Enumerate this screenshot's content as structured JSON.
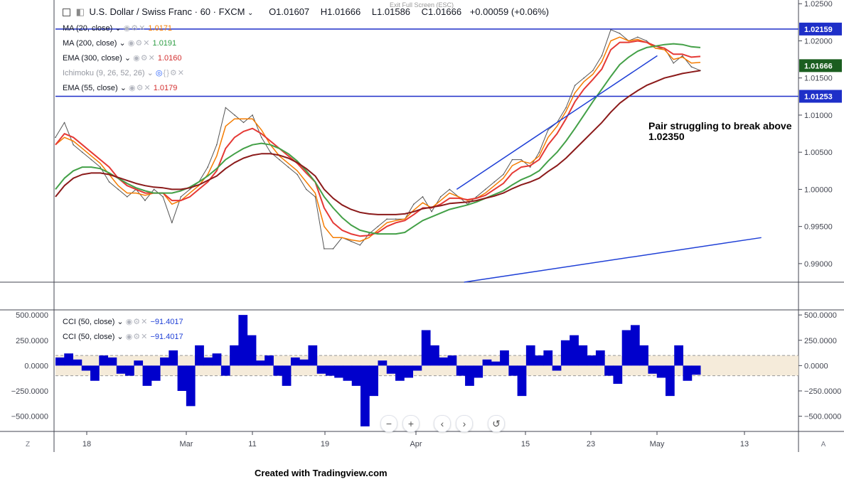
{
  "header": {
    "symbol": "U.S. Dollar / Swiss Franc · 60 · FXCM",
    "open": "O1.01607",
    "high": "H1.01666",
    "low": "L1.01586",
    "close": "C1.01666",
    "change": "+0.00059 (+0.06%)",
    "exit_fullscreen": "Exit Full Screen (ESC)"
  },
  "indicators": [
    {
      "label": "MA (20, close)",
      "value": "1.0171",
      "color": "#f57c00"
    },
    {
      "label": "MA (200, close)",
      "value": "1.0191",
      "color": "#2e9e44"
    },
    {
      "label": "EMA (300, close)",
      "value": "1.0160",
      "color": "#d32f2f"
    },
    {
      "label": "Ichimoku (9, 26, 52, 26)",
      "value": "",
      "color": "#b2b5be"
    },
    {
      "label": "EMA (55, close)",
      "value": "1.0179",
      "color": "#d32f2f"
    }
  ],
  "cci_legend": [
    {
      "label": "CCI (50, close)",
      "value": "−91.4017"
    },
    {
      "label": "CCI (50, close)",
      "value": "−91.4017"
    }
  ],
  "annotation": "Pair struggling to break above 1.02350",
  "footer": "Created with Tradingview.com",
  "corner_left": "Z",
  "corner_right": "A",
  "zoom_controls": [
    "−",
    "+",
    "‹",
    "›",
    "↺"
  ],
  "chart_data": [
    {
      "type": "line",
      "y_axis_ticks": [
        "1.02500",
        "1.02000",
        "1.01500",
        "1.01000",
        "1.00500",
        "1.00000",
        "0.99500",
        "0.99000"
      ],
      "ylim": [
        0.9875,
        1.0255
      ],
      "x_axis_ticks": [
        "18",
        "Mar",
        "11",
        "19",
        "Apr",
        "15",
        "23",
        "May",
        "13"
      ],
      "price_labels": [
        {
          "value": "1.02159",
          "y": 1.02159,
          "style": "blue-line"
        },
        {
          "value": "1.01666",
          "y": 1.01666,
          "style": "green-tag"
        },
        {
          "value": "1.01253",
          "y": 1.01253,
          "style": "blue-line"
        }
      ],
      "horizontal_lines": [
        1.02159,
        1.01253
      ],
      "series": [
        {
          "name": "Price",
          "color": "#555555",
          "values": [
            1.007,
            1.009,
            1.006,
            1.005,
            1.004,
            1.003,
            1.001,
            1.0,
            0.999,
            1.0,
            0.9985,
            1.0,
            0.999,
            0.9955,
            0.999,
            1.0,
            1.001,
            1.003,
            1.006,
            1.011,
            1.01,
            1.009,
            1.01,
            1.007,
            1.005,
            1.004,
            1.003,
            1.002,
            1.0,
            0.999,
            0.992,
            0.992,
            0.9935,
            0.993,
            0.9925,
            0.994,
            0.995,
            0.996,
            0.996,
            0.996,
            0.998,
            0.999,
            0.997,
            0.999,
            1.0,
            0.999,
            0.998,
            0.999,
            1.0,
            1.001,
            1.002,
            1.004,
            1.004,
            1.003,
            1.005,
            1.008,
            1.009,
            1.011,
            1.014,
            1.015,
            1.016,
            1.018,
            1.0215,
            1.021,
            1.02,
            1.0205,
            1.02,
            1.019,
            1.019,
            1.017,
            1.018,
            1.0165,
            1.016
          ]
        },
        {
          "name": "MA (20, close)",
          "color": "#f57c00",
          "values": [
            1.006,
            1.007,
            1.0065,
            1.0055,
            1.0045,
            1.0035,
            1.002,
            1.0005,
            0.9995,
            0.9995,
            0.9992,
            0.9995,
            0.9995,
            0.998,
            0.9985,
            0.9995,
            1.0005,
            1.002,
            1.0045,
            1.0085,
            1.0095,
            1.0095,
            1.0095,
            1.008,
            1.006,
            1.0045,
            1.0035,
            1.0025,
            1.001,
            0.9995,
            0.995,
            0.9935,
            0.9935,
            0.9932,
            0.993,
            0.9935,
            0.9945,
            0.9955,
            0.9958,
            0.996,
            0.9972,
            0.9982,
            0.9975,
            0.9985,
            0.9995,
            0.999,
            0.9985,
            0.9988,
            0.9995,
            1.0005,
            1.0015,
            1.0032,
            1.0038,
            1.0035,
            1.0045,
            1.007,
            1.0085,
            1.0105,
            1.013,
            1.0145,
            1.0155,
            1.0172,
            1.02,
            1.0205,
            1.02,
            1.0202,
            1.0198,
            1.019,
            1.0188,
            1.0175,
            1.0178,
            1.017,
            1.0171
          ]
        },
        {
          "name": "EMA (55, close)",
          "color": "#e53935",
          "values": [
            1.006,
            1.0075,
            1.007,
            1.006,
            1.005,
            1.004,
            1.003,
            1.0015,
            1.0005,
            1.0,
            0.9995,
            0.9995,
            0.9995,
            0.9985,
            0.9985,
            0.999,
            1.0,
            1.001,
            1.0025,
            1.0055,
            1.007,
            1.0078,
            1.0082,
            1.0075,
            1.0065,
            1.0055,
            1.0045,
            1.0035,
            1.0022,
            1.001,
            0.9975,
            0.9955,
            0.9945,
            0.994,
            0.9937,
            0.9938,
            0.9942,
            0.995,
            0.9955,
            0.9958,
            0.9966,
            0.9975,
            0.9975,
            0.998,
            0.9988,
            0.9988,
            0.9986,
            0.9988,
            0.9992,
            1.0,
            1.0008,
            1.0022,
            1.003,
            1.0032,
            1.004,
            1.006,
            1.0075,
            1.0095,
            1.0118,
            1.0135,
            1.0148,
            1.0162,
            1.0188,
            1.0198,
            1.0198,
            1.02,
            1.0198,
            1.0193,
            1.019,
            1.0182,
            1.0182,
            1.0178,
            1.0179
          ]
        },
        {
          "name": "MA (200, close)",
          "color": "#43a047",
          "values": [
            1.0,
            1.0015,
            1.0025,
            1.003,
            1.003,
            1.0028,
            1.0022,
            1.0015,
            1.0008,
            1.0002,
            0.9998,
            0.9995,
            0.9995,
            0.9995,
            0.9998,
            1.0003,
            1.001,
            1.0018,
            1.0028,
            1.004,
            1.0048,
            1.0055,
            1.006,
            1.0062,
            1.006,
            1.0055,
            1.0048,
            1.0038,
            1.0025,
            1.001,
            0.999,
            0.9975,
            0.9962,
            0.9952,
            0.9945,
            0.9942,
            0.994,
            0.994,
            0.994,
            0.9942,
            0.995,
            0.9958,
            0.9963,
            0.9968,
            0.9973,
            0.9976,
            0.9979,
            0.9983,
            0.9988,
            0.9993,
            0.9998,
            1.0006,
            1.0013,
            1.0018,
            1.0025,
            1.0038,
            1.005,
            1.0065,
            1.0082,
            1.01,
            1.0118,
            1.0135,
            1.0152,
            1.0168,
            1.0178,
            1.0186,
            1.0191,
            1.0193,
            1.0195,
            1.0196,
            1.0195,
            1.0192,
            1.0191
          ]
        },
        {
          "name": "EMA (300, close)",
          "color": "#8b1a1a",
          "values": [
            0.999,
            1.0005,
            1.0015,
            1.002,
            1.0022,
            1.0022,
            1.002,
            1.0016,
            1.0012,
            1.0008,
            1.0005,
            1.0003,
            1.0002,
            1.0,
            1.0,
            1.0002,
            1.0006,
            1.0012,
            1.0018,
            1.0028,
            1.0036,
            1.0042,
            1.0046,
            1.0048,
            1.0048,
            1.0046,
            1.0042,
            1.0036,
            1.0028,
            1.0018,
            1.0,
            0.9988,
            0.9979,
            0.9973,
            0.9969,
            0.9967,
            0.9966,
            0.9966,
            0.9966,
            0.9967,
            0.997,
            0.9974,
            0.9976,
            0.9978,
            0.9981,
            0.9982,
            0.9983,
            0.9985,
            0.9988,
            0.9991,
            0.9995,
            1.0001,
            1.0006,
            1.001,
            1.0015,
            1.0024,
            1.0032,
            1.0042,
            1.0054,
            1.0066,
            1.0078,
            1.009,
            1.0104,
            1.0116,
            1.0125,
            1.0133,
            1.014,
            1.0145,
            1.015,
            1.0153,
            1.0156,
            1.0158,
            1.016
          ]
        }
      ],
      "trendlines": [
        {
          "x0": 0.54,
          "y0": 1.0,
          "x1": 0.81,
          "y1": 1.018,
          "color": "#1e3fd6"
        },
        {
          "x0": 0.55,
          "y0": 0.9875,
          "x1": 0.95,
          "y1": 0.9935,
          "color": "#1e3fd6"
        }
      ]
    },
    {
      "type": "area",
      "name": "CCI (50, close)",
      "color": "#0000cc",
      "y_axis_ticks": [
        "500.0000",
        "250.0000",
        "0.0000",
        "−250.0000",
        "−500.0000"
      ],
      "ylim": [
        -650,
        550
      ],
      "band": [
        -100,
        100
      ],
      "values": [
        80,
        120,
        60,
        -50,
        -150,
        100,
        80,
        -80,
        -100,
        50,
        -200,
        -150,
        80,
        150,
        -250,
        -400,
        200,
        80,
        120,
        -100,
        200,
        500,
        300,
        50,
        100,
        -100,
        -200,
        80,
        60,
        200,
        -80,
        -100,
        -120,
        -150,
        -200,
        -600,
        -300,
        50,
        -80,
        -150,
        -120,
        -50,
        350,
        200,
        80,
        100,
        -100,
        -200,
        -120,
        60,
        40,
        150,
        -100,
        -300,
        200,
        100,
        150,
        -50,
        250,
        300,
        200,
        100,
        150,
        -100,
        -180,
        350,
        400,
        200,
        -80,
        -120,
        -300,
        200,
        -150,
        -90
      ]
    }
  ]
}
